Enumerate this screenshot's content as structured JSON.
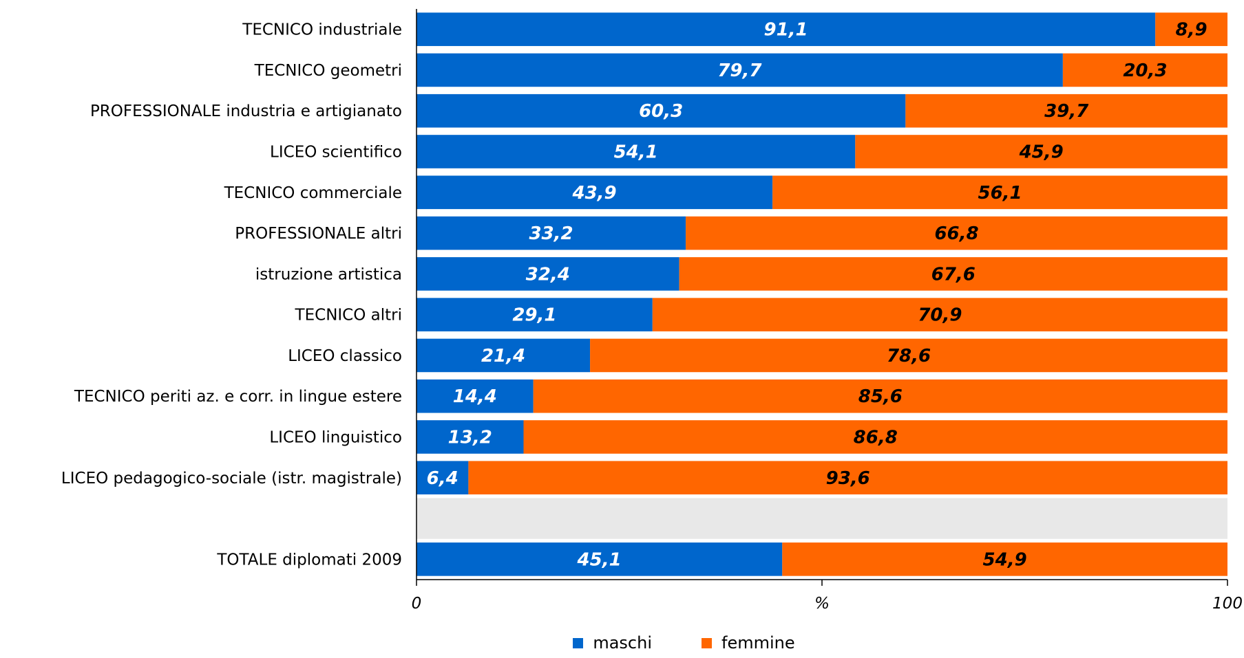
{
  "chart_data": {
    "type": "bar",
    "orientation": "horizontal",
    "stacked": true,
    "categories": [
      "TECNICO industriale",
      "TECNICO geometri",
      "PROFESSIONALE industria e artigianato",
      "LICEO scientifico",
      "TECNICO commerciale",
      "PROFESSIONALE altri",
      "istruzione artistica",
      "TECNICO altri",
      "LICEO classico",
      "TECNICO periti az. e corr. in lingue estere",
      "LICEO linguistico",
      "LICEO pedagogico-sociale (istr. magistrale)",
      "",
      "TOTALE diplomati 2009"
    ],
    "series": [
      {
        "name": "maschi",
        "color": "#0066CC",
        "values": [
          91.1,
          79.7,
          60.3,
          54.1,
          43.9,
          33.2,
          32.4,
          29.1,
          21.4,
          14.4,
          13.2,
          6.4,
          null,
          45.1
        ],
        "labels": [
          "91,1",
          "79,7",
          "60,3",
          "54,1",
          "43,9",
          "33,2",
          "32,4",
          "29,1",
          "21,4",
          "14,4",
          "13,2",
          "6,4",
          "",
          "45,1"
        ]
      },
      {
        "name": "femmine",
        "color": "#FF6600",
        "values": [
          8.9,
          20.3,
          39.7,
          45.9,
          56.1,
          66.8,
          67.6,
          70.9,
          78.6,
          85.6,
          86.8,
          93.6,
          null,
          54.9
        ],
        "labels": [
          "8,9",
          "20,3",
          "39,7",
          "45,9",
          "56,1",
          "66,8",
          "67,6",
          "70,9",
          "78,6",
          "85,6",
          "86,8",
          "93,6",
          "",
          "54,9"
        ]
      }
    ],
    "xlim": [
      0,
      100
    ],
    "x_ticks": [
      "0",
      "%",
      "100"
    ],
    "xlabel": "%",
    "grid": false,
    "legend_position": "bottom",
    "background_color": "#FFFFFF",
    "empty_row_color": "#E8E8E8"
  },
  "legend": {
    "items": [
      {
        "label": "maschi",
        "color": "#0066CC"
      },
      {
        "label": "femmine",
        "color": "#FF6600"
      }
    ]
  }
}
